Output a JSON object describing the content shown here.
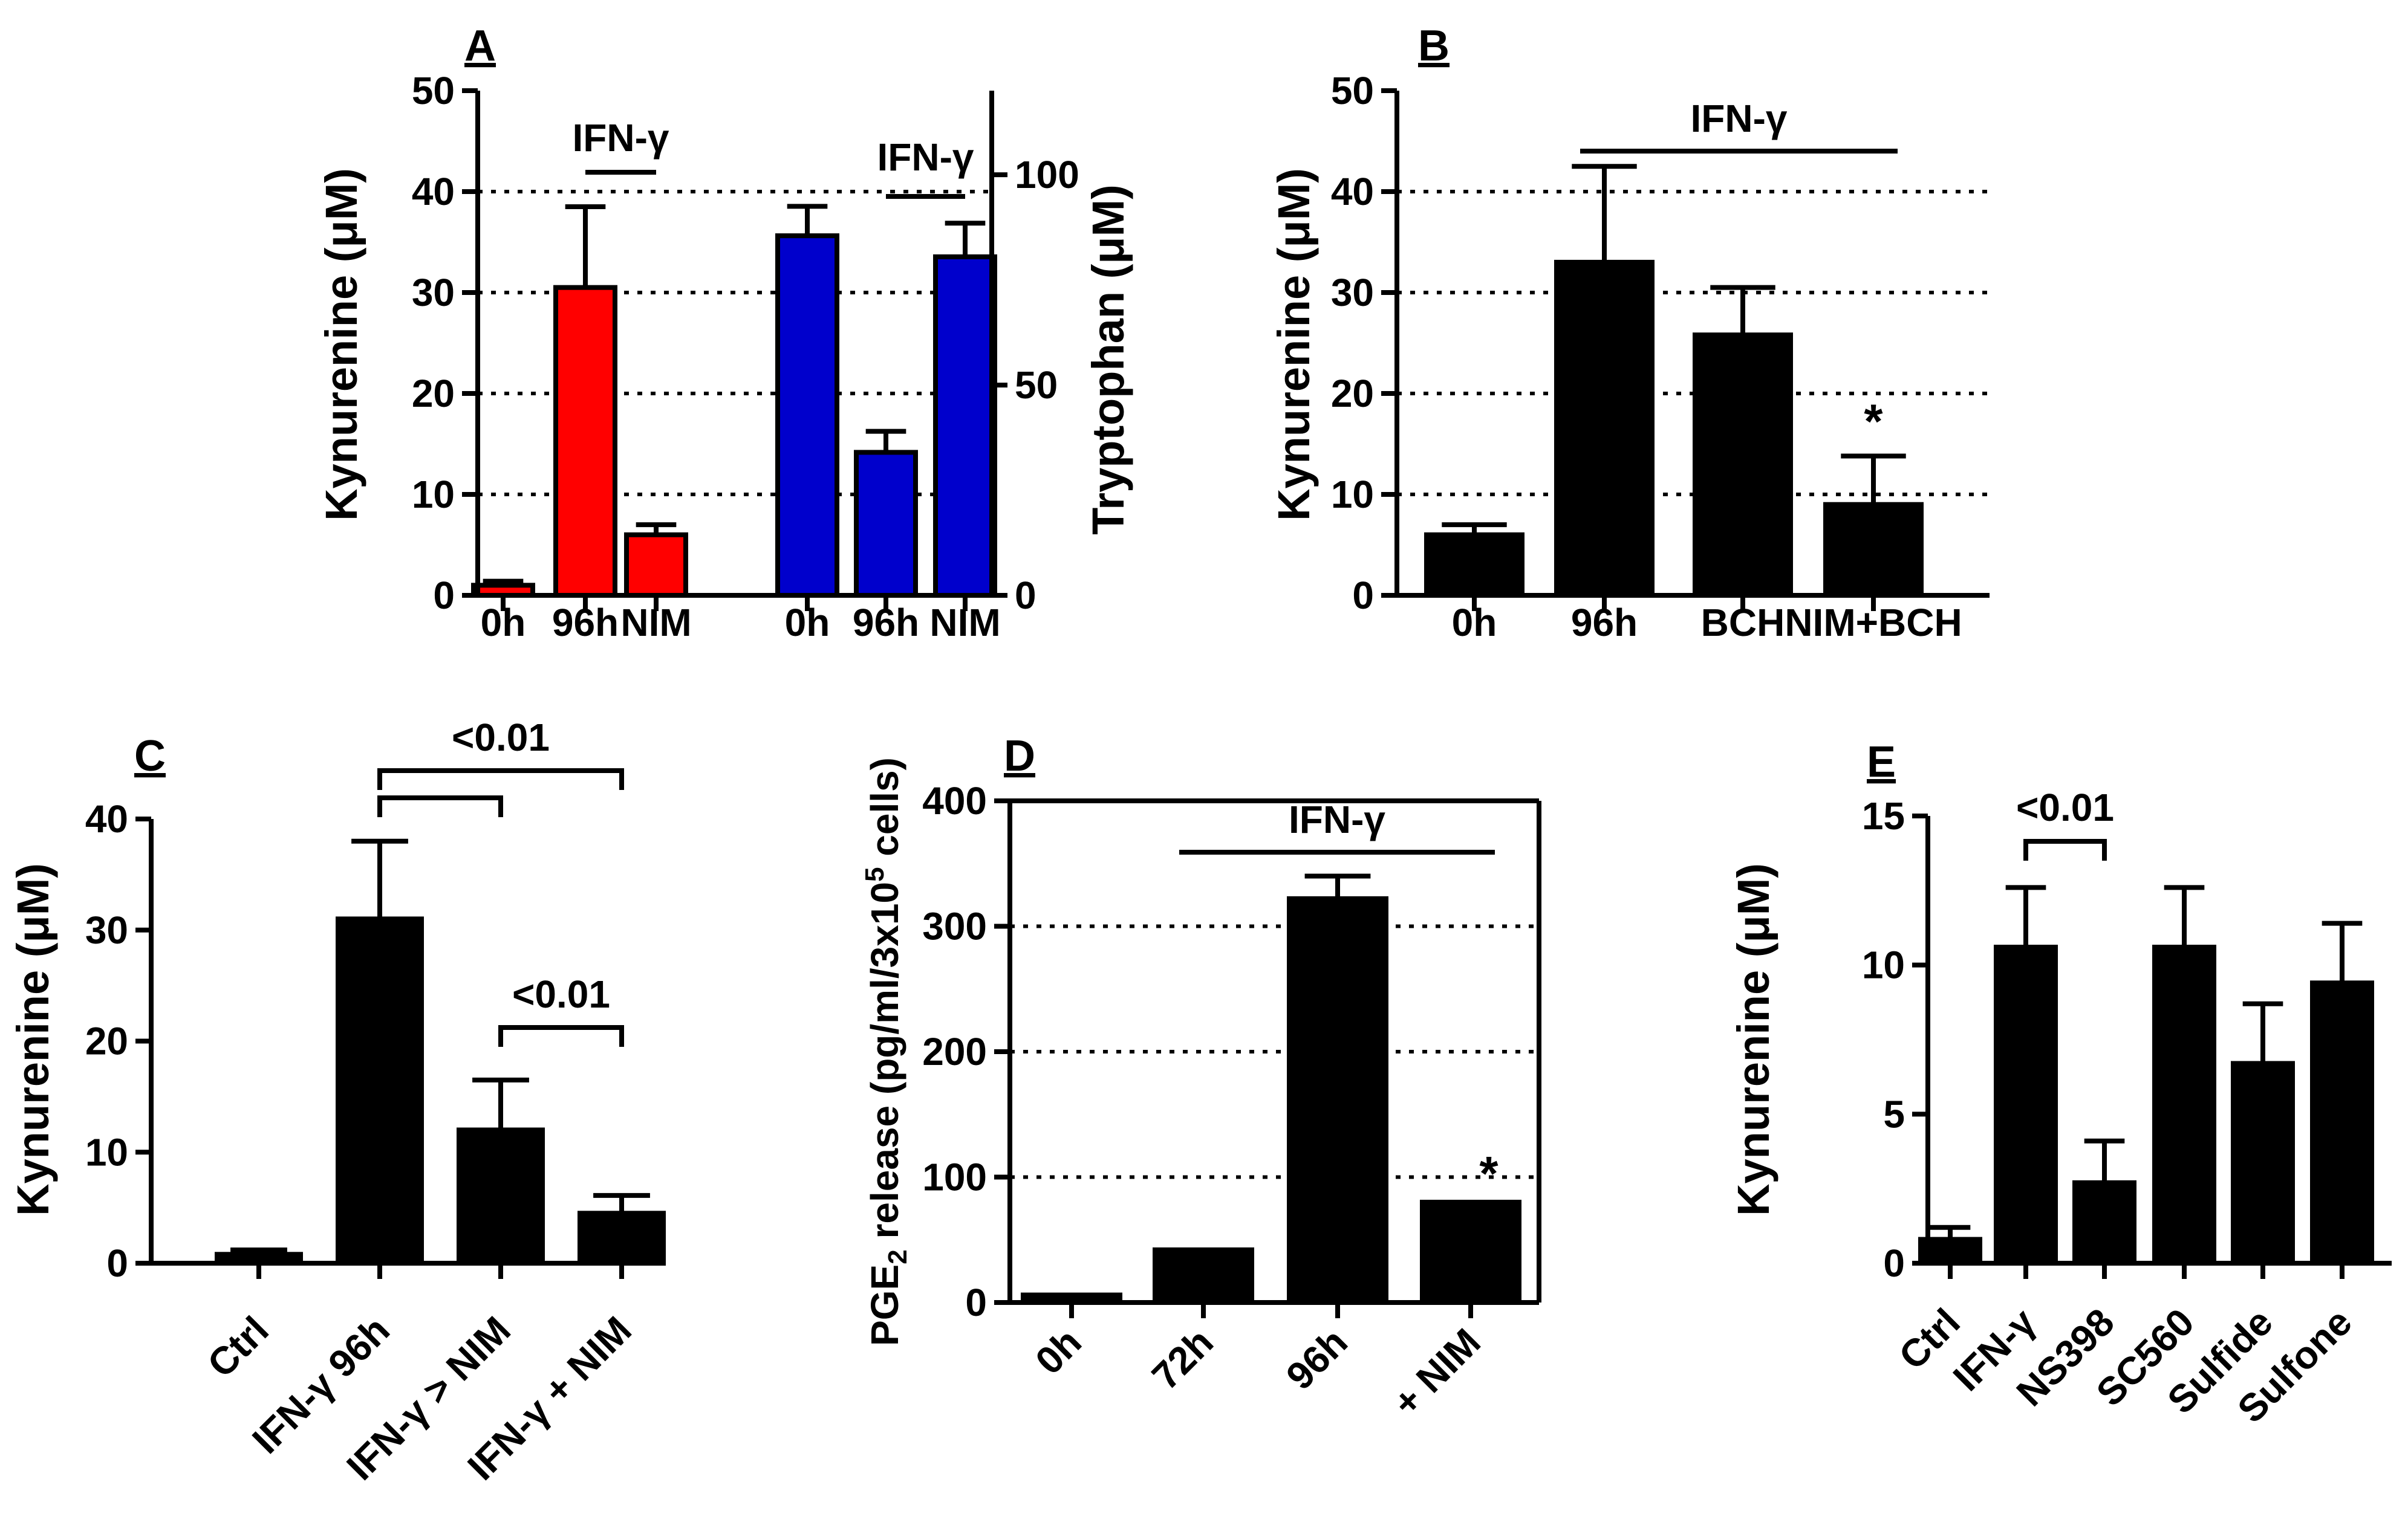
{
  "chart_data": [
    {
      "id": "A",
      "panel_label": "A",
      "type": "bar",
      "grid": true,
      "categories": [
        "0h",
        "96h",
        "NIM",
        "0h",
        "96h",
        "NIM"
      ],
      "series": [
        {
          "name": "Kynurenine",
          "axis": "left",
          "color": "#ff0000",
          "values": [
            1,
            30.5,
            6,
            null,
            null,
            null
          ],
          "errors": [
            0.4,
            8,
            1,
            null,
            null,
            null
          ]
        },
        {
          "name": "Tryptophan",
          "axis": "right",
          "color": "#0000cc",
          "values": [
            null,
            null,
            null,
            85.5,
            34,
            80.5
          ],
          "errors": [
            null,
            null,
            null,
            7,
            5,
            8
          ]
        }
      ],
      "ylabel": "Kynurenine (μM)",
      "ylabel_right": "Tryptophan (μM)",
      "ylim": [
        0,
        50
      ],
      "ylim_right": [
        0,
        120
      ],
      "yticks": [
        0,
        10,
        20,
        30,
        40,
        50
      ],
      "yticks_right": [
        0,
        50,
        100
      ],
      "grid_values": [
        10,
        20,
        30,
        40
      ],
      "annotations": [
        {
          "text": "IFN-γ",
          "from_category": 1,
          "to_category": 2
        },
        {
          "text": "IFN-γ",
          "from_category": 4,
          "to_category": 5
        }
      ]
    },
    {
      "id": "B",
      "panel_label": "B",
      "type": "bar",
      "grid": true,
      "categories": [
        "0h",
        "96h",
        "BCH",
        "NIM+BCH"
      ],
      "series": [
        {
          "name": "Kynurenine",
          "color": "#000000",
          "values": [
            6,
            33,
            25.8,
            9
          ],
          "errors": [
            1,
            9.5,
            4.7,
            4.8
          ]
        }
      ],
      "ylabel": "Kynurenine (μM)",
      "ylim": [
        0,
        50
      ],
      "yticks": [
        0,
        10,
        20,
        30,
        40,
        50
      ],
      "grid_values": [
        10,
        20,
        30,
        40
      ],
      "annotations": [
        {
          "text": "IFN-γ",
          "from_category": 1,
          "to_category": 3
        },
        {
          "text": "*",
          "category": 3
        }
      ]
    },
    {
      "id": "C",
      "panel_label": "C",
      "type": "bar",
      "grid": false,
      "categories": [
        "Ctrl",
        "IFN-γ 96h",
        "IFN-γ > NIM",
        "IFN-γ + NIM"
      ],
      "series": [
        {
          "name": "Kynurenine",
          "color": "#000000",
          "values": [
            0.8,
            31,
            12,
            4.5
          ],
          "errors": [
            0.4,
            7,
            4.5,
            1.6
          ]
        }
      ],
      "ylabel": "Kynurenine (μM)",
      "ylim": [
        0,
        40
      ],
      "yticks": [
        0,
        10,
        20,
        30,
        40
      ],
      "grid_values": [],
      "annotations": [
        {
          "text": "<0.01",
          "from_category": 1,
          "to_category": 3
        },
        {
          "text": "",
          "from_category": 1,
          "to_category": 2
        },
        {
          "text": "<0.01",
          "from_category": 2,
          "to_category": 3
        }
      ]
    },
    {
      "id": "D",
      "panel_label": "D",
      "type": "bar",
      "grid": true,
      "categories": [
        "0h",
        "72h",
        "96h",
        "+ NIM"
      ],
      "series": [
        {
          "name": "PGE2 release",
          "color": "#000000",
          "values": [
            6,
            42,
            322,
            80
          ],
          "errors": [
            0,
            0,
            18,
            0
          ]
        }
      ],
      "ylabel": "PGE2 release (pg/ml/3x10^5 cells)",
      "ylim": [
        0,
        400
      ],
      "yticks": [
        0,
        100,
        200,
        300,
        400
      ],
      "grid_values": [
        100,
        200,
        300
      ],
      "annotations": [
        {
          "text": "IFN-γ",
          "from_category": 1,
          "to_category": 3
        },
        {
          "text": "*",
          "category": 3
        }
      ]
    },
    {
      "id": "E",
      "panel_label": "E",
      "type": "bar",
      "grid": false,
      "categories": [
        "Ctrl",
        "IFN-γ",
        "NS398",
        "SC560",
        "Sulfide",
        "Sulfone"
      ],
      "series": [
        {
          "name": "Kynurenine",
          "color": "#000000",
          "values": [
            0.8,
            10.6,
            2.7,
            10.6,
            6.7,
            9.4
          ],
          "errors": [
            0.4,
            2,
            1.4,
            2,
            2,
            2
          ]
        }
      ],
      "ylabel": "Kynurenine (μM)",
      "ylim": [
        0,
        15
      ],
      "yticks": [
        0,
        5,
        10,
        15
      ],
      "grid_values": [],
      "annotations": [
        {
          "text": "<0.01",
          "from_category": 1,
          "to_category": 2
        }
      ]
    }
  ]
}
